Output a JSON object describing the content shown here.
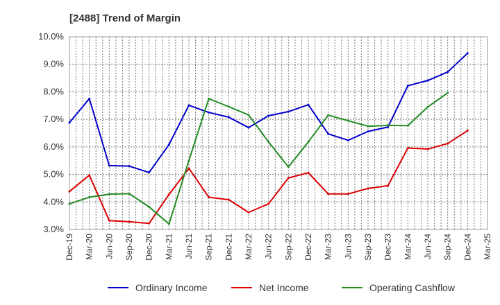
{
  "chart_data": {
    "type": "line",
    "title": "[2488]  Trend of Margin",
    "xlabel": "",
    "ylabel": "",
    "ylim": [
      3.0,
      10.0
    ],
    "y_ticks": [
      "3.0%",
      "4.0%",
      "5.0%",
      "6.0%",
      "7.0%",
      "8.0%",
      "9.0%",
      "10.0%"
    ],
    "categories": [
      "Dec-19",
      "Mar-20",
      "Jun-20",
      "Sep-20",
      "Dec-20",
      "Mar-21",
      "Jun-21",
      "Sep-21",
      "Dec-21",
      "Mar-22",
      "Jun-22",
      "Sep-22",
      "Dec-22",
      "Mar-23",
      "Jun-23",
      "Sep-23",
      "Dec-23",
      "Mar-24",
      "Jun-24",
      "Sep-24",
      "Dec-24",
      "Mar-25"
    ],
    "grid": true,
    "legend_position": "bottom",
    "series": [
      {
        "name": "Ordinary Income",
        "color": "#0000cc",
        "values": [
          6.88,
          7.75,
          5.32,
          5.3,
          5.07,
          6.08,
          7.51,
          7.25,
          7.08,
          6.7,
          7.13,
          7.28,
          7.53,
          6.47,
          6.24,
          6.56,
          6.72,
          8.22,
          8.41,
          8.72,
          9.4,
          null
        ]
      },
      {
        "name": "Net Income",
        "color": "#dd0000",
        "values": [
          4.38,
          4.97,
          3.32,
          3.28,
          3.22,
          4.27,
          5.22,
          4.17,
          4.08,
          3.62,
          3.93,
          4.87,
          5.06,
          4.29,
          4.29,
          4.49,
          4.59,
          5.96,
          5.92,
          6.12,
          6.59,
          null
        ]
      },
      {
        "name": "Operating Cashflow",
        "color": "#228b22",
        "values": [
          3.93,
          4.17,
          4.28,
          4.3,
          3.82,
          3.2,
          5.5,
          7.75,
          7.46,
          7.16,
          6.18,
          5.27,
          6.18,
          7.15,
          6.95,
          6.75,
          6.78,
          6.77,
          7.45,
          7.96,
          null,
          null
        ]
      }
    ]
  }
}
